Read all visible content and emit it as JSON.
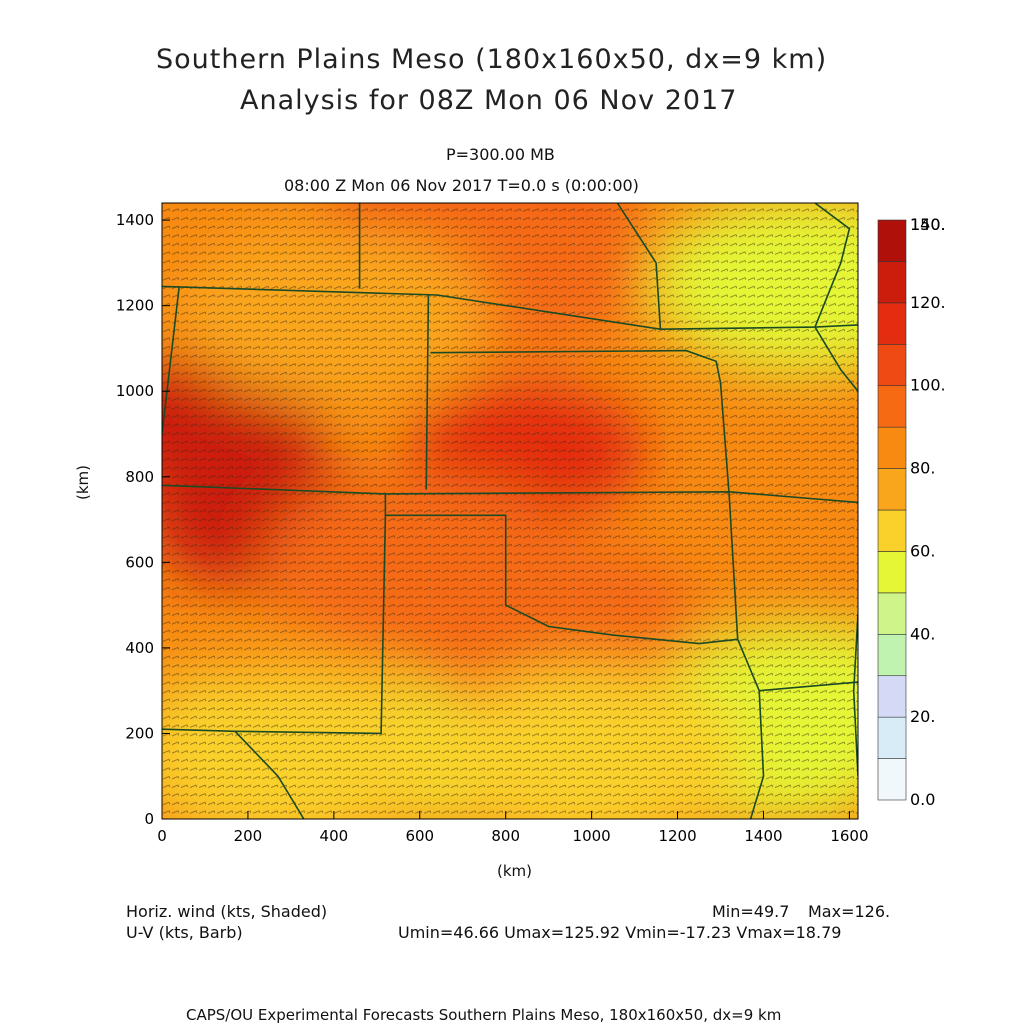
{
  "header": {
    "title_line1": "Southern Plains Meso (180x160x50, dx=9 km)",
    "title_line2": "Analysis for 08Z Mon 06 Nov 2017",
    "level": "P=300.00 MB",
    "time_line": "08:00 Z Mon 06 Nov 2017    T=0.0 s (0:00:00)"
  },
  "chart_data": {
    "type": "heatmap",
    "xlabel": "(km)",
    "ylabel": "(km)",
    "xlim": [
      0,
      1620
    ],
    "ylim": [
      0,
      1440
    ],
    "x_ticks": [
      "0",
      "200",
      "400",
      "600",
      "800",
      "1000",
      "1200",
      "1400",
      "1600"
    ],
    "y_ticks": [
      "0",
      "200",
      "400",
      "600",
      "800",
      "1000",
      "1200",
      "1400"
    ],
    "colorbar": {
      "levels": [
        "150.",
        "140.",
        "120.",
        "100.",
        "80.",
        "60.",
        "40.",
        "20.",
        "0.0"
      ],
      "colors": [
        "#f0f8fc",
        "#d8ecf8",
        "#d4daf6",
        "#c0f2b0",
        "#cef48a",
        "#e4f636",
        "#fad02a",
        "#faa61c",
        "#f88a12",
        "#f66a14",
        "#f04a14",
        "#e42c10",
        "#cc1c0c",
        "#b0100a"
      ]
    },
    "wind_speed_regions_kts": [
      {
        "center_km": [
          100,
          920
        ],
        "value": 126
      },
      {
        "center_km": [
          230,
          700
        ],
        "value": 120
      },
      {
        "center_km": [
          850,
          860
        ],
        "value": 116
      },
      {
        "center_km": [
          740,
          1400
        ],
        "value": 108
      },
      {
        "center_km": [
          800,
          1300
        ],
        "value": 95
      },
      {
        "center_km": [
          600,
          600
        ],
        "value": 98
      },
      {
        "center_km": [
          900,
          450
        ],
        "value": 92
      },
      {
        "center_km": [
          400,
          1180
        ],
        "value": 78
      },
      {
        "center_km": [
          1500,
          1250
        ],
        "value": 58
      },
      {
        "center_km": [
          1500,
          250
        ],
        "value": 55
      },
      {
        "center_km": [
          300,
          150
        ],
        "value": 62
      },
      {
        "center_km": [
          1000,
          150
        ],
        "value": 66
      }
    ],
    "field_label": "Horiz. wind (kts, Shaded)",
    "barb_label": "U-V (kts, Barb)",
    "min": "Min=49.7",
    "max": "Max=126.",
    "uv_stats": "Umin=46.66 Umax=125.92 Vmin=-17.23 Vmax=18.79"
  },
  "footer": "CAPS/OU Experimental Forecasts  Southern Plains Meso, 180x160x50, dx=9 km"
}
